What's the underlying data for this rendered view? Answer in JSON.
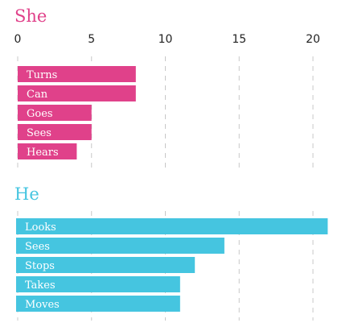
{
  "chart_data": [
    {
      "type": "bar",
      "orientation": "horizontal",
      "title": "She",
      "color": "#e0418a",
      "categories": [
        "Turns",
        "Can",
        "Goes",
        "Sees",
        "Hears"
      ],
      "values": [
        8,
        8,
        5,
        5,
        4
      ],
      "xlim": [
        0,
        21
      ],
      "xticks": [
        "0",
        "5",
        "10",
        "15",
        "20"
      ],
      "grid": true
    },
    {
      "type": "bar",
      "orientation": "horizontal",
      "title": "He",
      "color": "#45c5e0",
      "categories": [
        "Looks",
        "Sees",
        "Stops",
        "Takes",
        "Moves"
      ],
      "values": [
        21,
        14,
        12,
        11,
        11
      ],
      "xlim": [
        0,
        21
      ],
      "grid": true
    }
  ]
}
